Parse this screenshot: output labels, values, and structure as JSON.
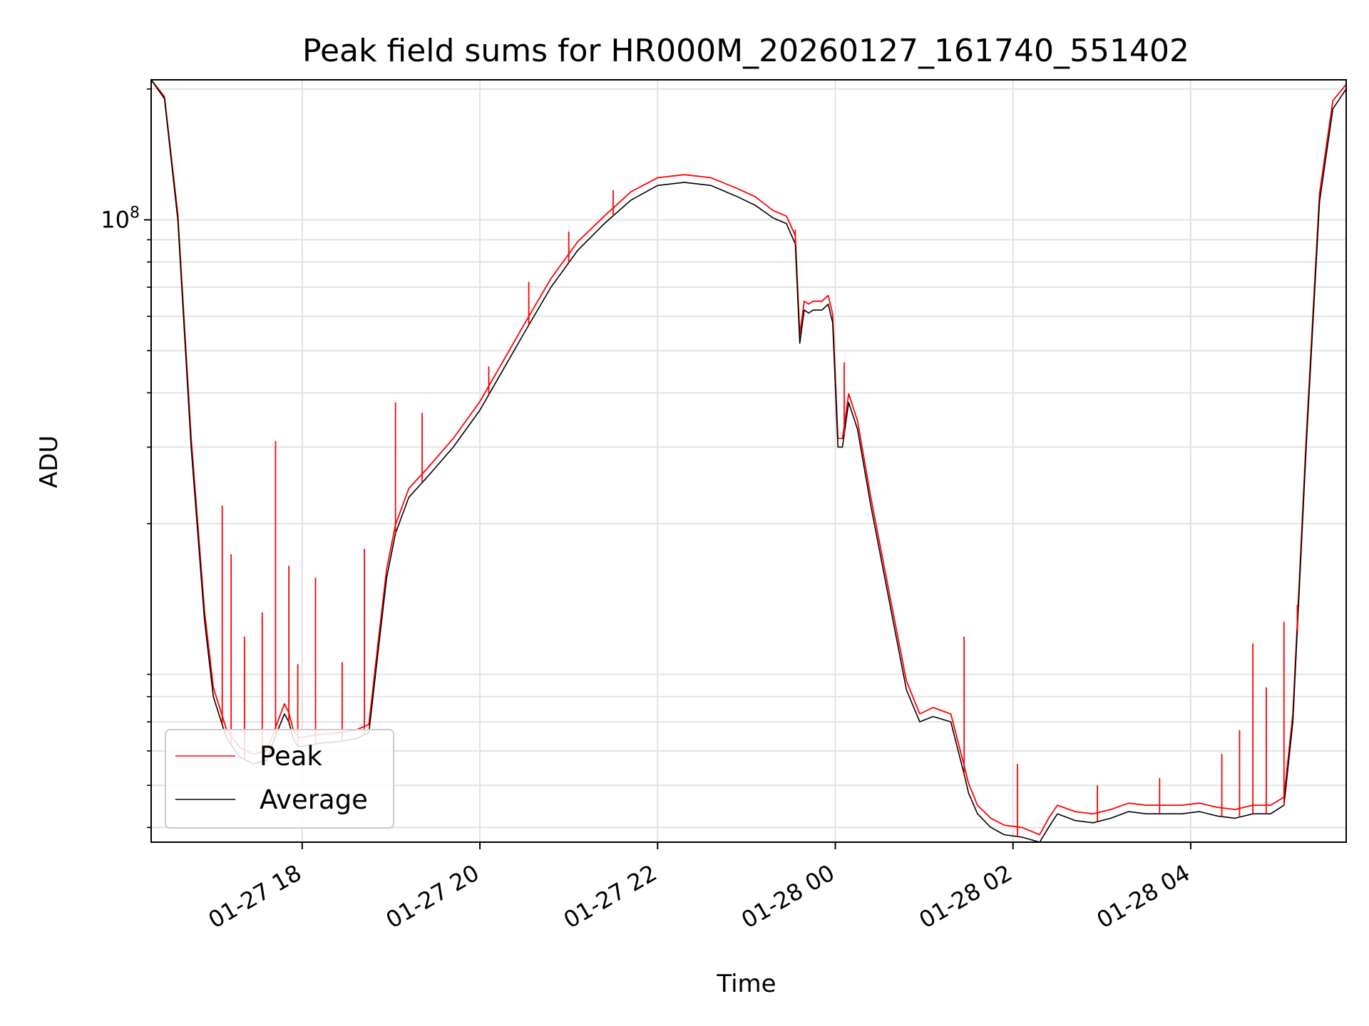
{
  "chart_data": {
    "type": "line",
    "title": "Peak field sums for HR000M_20260127_161740_551402",
    "xlabel": "Time",
    "ylabel": "ADU",
    "yscale": "log",
    "ylim": [
      3700000,
      210000000
    ],
    "xlim_hours": [
      16.3,
      29.75
    ],
    "x_ticks": [
      {
        "hours": 18,
        "label": "01-27 18"
      },
      {
        "hours": 20,
        "label": "01-27 20"
      },
      {
        "hours": 22,
        "label": "01-27 22"
      },
      {
        "hours": 24,
        "label": "01-28 00"
      },
      {
        "hours": 26,
        "label": "01-28 02"
      },
      {
        "hours": 28,
        "label": "01-28 04"
      }
    ],
    "y_major_ticks": [
      {
        "value": 100000000,
        "base": "10",
        "exponent": "8"
      }
    ],
    "y_minor_ticks": [
      4000000,
      5000000,
      6000000,
      7000000,
      8000000,
      9000000,
      20000000,
      30000000,
      40000000,
      50000000,
      60000000,
      70000000,
      80000000,
      90000000,
      200000000
    ],
    "grid": true,
    "legend": {
      "position": "lower-left",
      "entries": [
        {
          "label": "Peak",
          "color": "#ff0000"
        },
        {
          "label": "Average",
          "color": "#000000"
        }
      ]
    },
    "series": [
      {
        "name": "Average",
        "color": "#000000",
        "x_hours": [
          16.3,
          16.45,
          16.6,
          16.75,
          16.9,
          17.0,
          17.15,
          17.3,
          17.45,
          17.6,
          17.7,
          17.8,
          17.85,
          17.9,
          17.95,
          18.0,
          18.2,
          18.4,
          18.6,
          18.75,
          18.85,
          18.95,
          19.05,
          19.2,
          19.4,
          19.7,
          20.0,
          20.2,
          20.5,
          20.8,
          21.1,
          21.4,
          21.7,
          22.0,
          22.3,
          22.6,
          22.9,
          23.1,
          23.3,
          23.45,
          23.55,
          23.6,
          23.65,
          23.7,
          23.75,
          23.85,
          23.92,
          23.97,
          24.03,
          24.08,
          24.15,
          24.25,
          24.4,
          24.6,
          24.8,
          24.95,
          25.1,
          25.3,
          25.45,
          25.5,
          25.6,
          25.75,
          25.9,
          26.1,
          26.3,
          26.4,
          26.5,
          26.7,
          26.9,
          27.1,
          27.3,
          27.5,
          27.7,
          27.9,
          28.1,
          28.3,
          28.5,
          28.7,
          28.9,
          29.05,
          29.15,
          29.3,
          29.45,
          29.6,
          29.75
        ],
        "values": [
          210000000,
          190000000,
          100000000,
          30000000,
          12000000,
          8000000,
          6400000,
          5800000,
          5600000,
          5700000,
          6500000,
          7300000,
          7000000,
          6400000,
          6150000,
          6150000,
          6250000,
          6300000,
          6400000,
          6600000,
          10000000,
          15000000,
          19000000,
          23000000,
          25500000,
          30000000,
          36500000,
          43000000,
          55000000,
          70000000,
          85000000,
          98000000,
          111000000,
          120000000,
          122000000,
          120000000,
          113000000,
          108000000,
          101000000,
          98000000,
          88000000,
          52000000,
          62000000,
          61000000,
          62000000,
          62000000,
          64000000,
          58000000,
          30000000,
          30000000,
          38000000,
          33000000,
          22000000,
          13500000,
          8300000,
          7000000,
          7200000,
          7000000,
          5300000,
          4800000,
          4300000,
          4000000,
          3850000,
          3800000,
          3700000,
          4000000,
          4300000,
          4150000,
          4100000,
          4200000,
          4350000,
          4300000,
          4300000,
          4300000,
          4350000,
          4250000,
          4200000,
          4300000,
          4300000,
          4500000,
          7000000,
          30000000,
          110000000,
          180000000,
          200000000
        ]
      },
      {
        "name": "Peak",
        "color": "#ff0000",
        "x_hours": [
          16.3,
          16.45,
          16.6,
          16.75,
          16.9,
          17.0,
          17.15,
          17.3,
          17.45,
          17.6,
          17.7,
          17.8,
          17.85,
          17.9,
          17.95,
          18.0,
          18.2,
          18.4,
          18.6,
          18.75,
          18.85,
          18.95,
          19.05,
          19.2,
          19.4,
          19.7,
          20.0,
          20.2,
          20.5,
          20.8,
          21.1,
          21.4,
          21.7,
          22.0,
          22.3,
          22.6,
          22.9,
          23.1,
          23.3,
          23.45,
          23.55,
          23.6,
          23.65,
          23.7,
          23.75,
          23.85,
          23.92,
          23.97,
          24.03,
          24.08,
          24.15,
          24.25,
          24.4,
          24.6,
          24.8,
          24.95,
          25.1,
          25.3,
          25.45,
          25.5,
          25.6,
          25.75,
          25.9,
          26.1,
          26.3,
          26.4,
          26.5,
          26.7,
          26.9,
          27.1,
          27.3,
          27.5,
          27.7,
          27.9,
          28.1,
          28.3,
          28.5,
          28.7,
          28.9,
          29.05,
          29.15,
          29.3,
          29.45,
          29.6,
          29.75
        ],
        "values": [
          210000000,
          192000000,
          103000000,
          31500000,
          12600000,
          8400000,
          6700000,
          6100000,
          5900000,
          6000000,
          6800000,
          7700000,
          7350000,
          6700000,
          6450000,
          6450000,
          6550000,
          6600000,
          6700000,
          6900000,
          10500000,
          15700000,
          19900000,
          24100000,
          26700000,
          31400000,
          38200000,
          45000000,
          57600000,
          73300000,
          89000000,
          102000000,
          116000000,
          125000000,
          127000000,
          125000000,
          118000000,
          113000000,
          105000000,
          102000000,
          92000000,
          54500000,
          65000000,
          64000000,
          65000000,
          65000000,
          67000000,
          60700000,
          31400000,
          31400000,
          39800000,
          34500000,
          23000000,
          14100000,
          8700000,
          7300000,
          7550000,
          7300000,
          5550000,
          5050000,
          4500000,
          4200000,
          4050000,
          4000000,
          3850000,
          4200000,
          4500000,
          4350000,
          4300000,
          4400000,
          4550000,
          4500000,
          4500000,
          4500000,
          4550000,
          4450000,
          4400000,
          4500000,
          4500000,
          4700000,
          7300000,
          31400000,
          115000000,
          188000000,
          205000000
        ]
      }
    ],
    "peak_spikes": [
      {
        "hours": 17.1,
        "value": 22000000
      },
      {
        "hours": 17.2,
        "value": 17000000
      },
      {
        "hours": 17.35,
        "value": 11000000
      },
      {
        "hours": 17.55,
        "value": 12500000
      },
      {
        "hours": 17.7,
        "value": 31000000
      },
      {
        "hours": 17.85,
        "value": 16000000
      },
      {
        "hours": 17.95,
        "value": 9500000
      },
      {
        "hours": 18.15,
        "value": 15000000
      },
      {
        "hours": 18.45,
        "value": 9600000
      },
      {
        "hours": 18.7,
        "value": 17500000
      },
      {
        "hours": 19.05,
        "value": 38000000
      },
      {
        "hours": 19.35,
        "value": 36000000
      },
      {
        "hours": 20.1,
        "value": 46000000
      },
      {
        "hours": 20.55,
        "value": 72000000
      },
      {
        "hours": 21.0,
        "value": 94000000
      },
      {
        "hours": 21.5,
        "value": 117000000
      },
      {
        "hours": 23.55,
        "value": 95000000
      },
      {
        "hours": 24.1,
        "value": 47000000
      },
      {
        "hours": 25.45,
        "value": 11000000
      },
      {
        "hours": 26.05,
        "value": 5600000
      },
      {
        "hours": 26.95,
        "value": 5000000
      },
      {
        "hours": 27.65,
        "value": 5200000
      },
      {
        "hours": 28.35,
        "value": 5900000
      },
      {
        "hours": 28.55,
        "value": 6700000
      },
      {
        "hours": 28.7,
        "value": 10600000
      },
      {
        "hours": 28.85,
        "value": 8400000
      },
      {
        "hours": 29.05,
        "value": 11900000
      },
      {
        "hours": 29.2,
        "value": 13000000
      }
    ]
  }
}
